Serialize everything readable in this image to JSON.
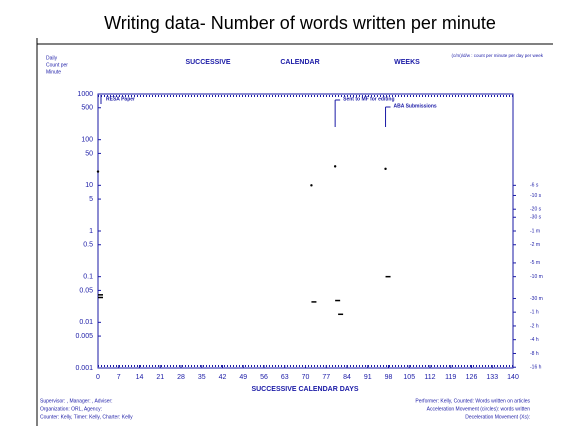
{
  "chart_data": {
    "type": "scatter",
    "title": "Writing data- Number of words written per minute",
    "y_axis_label": [
      "Daily",
      "Count per",
      "Minute"
    ],
    "top_labels": [
      "SUCCESSIVE",
      "CALENDAR",
      "WEEKS"
    ],
    "top_note": "(c/m)/d/w : count per minute per day per week",
    "x_axis_label": "SUCCESSIVE CALENDAR DAYS",
    "log_y": true,
    "xlim": [
      0,
      140
    ],
    "ylim": [
      0.001,
      1000
    ],
    "xticks": [
      0,
      7,
      14,
      21,
      28,
      35,
      42,
      49,
      56,
      63,
      70,
      77,
      84,
      91,
      98,
      105,
      112,
      119,
      126,
      133,
      140
    ],
    "yticks": [
      1000,
      500,
      100,
      50,
      10,
      5,
      1,
      0.5,
      0.1,
      0.05,
      0.01,
      0.005,
      0.001
    ],
    "right_ticks": [
      {
        "value": 10,
        "label": "-6 s"
      },
      {
        "value": 6,
        "label": "-10 s"
      },
      {
        "value": 3,
        "label": "-20 s"
      },
      {
        "value": 2,
        "label": "-30 s"
      },
      {
        "value": 1,
        "label": "-1 m"
      },
      {
        "value": 0.5,
        "label": "-2 m"
      },
      {
        "value": 0.2,
        "label": "-5 m"
      },
      {
        "value": 0.1,
        "label": "-10 m"
      },
      {
        "value": 0.0333,
        "label": "-30 m"
      },
      {
        "value": 0.0167,
        "label": "-1 h"
      },
      {
        "value": 0.00833,
        "label": "-2 h"
      },
      {
        "value": 0.00417,
        "label": "-4 h"
      },
      {
        "value": 0.00208,
        "label": "-8 h"
      },
      {
        "value": 0.00104,
        "label": "-16 h"
      }
    ],
    "annotations": [
      {
        "text": "RESA Paper",
        "x": 0
      },
      {
        "text": "Sent to MF for editing",
        "x": 80
      },
      {
        "text": "ABA Submissions",
        "x": 97
      }
    ],
    "series": [
      {
        "marker": "dot",
        "color": "#000000",
        "x": [
          0,
          72,
          80,
          97
        ],
        "values": [
          20,
          10,
          26,
          23
        ]
      },
      {
        "marker": "dash",
        "color": "#000000",
        "x": [
          0,
          0,
          72,
          80,
          81,
          97
        ],
        "values": [
          0.04,
          0.035,
          0.028,
          0.03,
          0.015,
          0.1
        ]
      }
    ],
    "footer_left": [
      "Supervisor: , Manager: , Adviser:",
      "Organization: ORL, Agency:",
      "Counter: Kelly, Timer: Kelly, Charter: Kelly"
    ],
    "footer_right": [
      "Performer: Kelly, Counted: Words written on articles",
      "Acceleration Movement (circles): words written",
      "Deceleration Movement (Xs):"
    ]
  }
}
